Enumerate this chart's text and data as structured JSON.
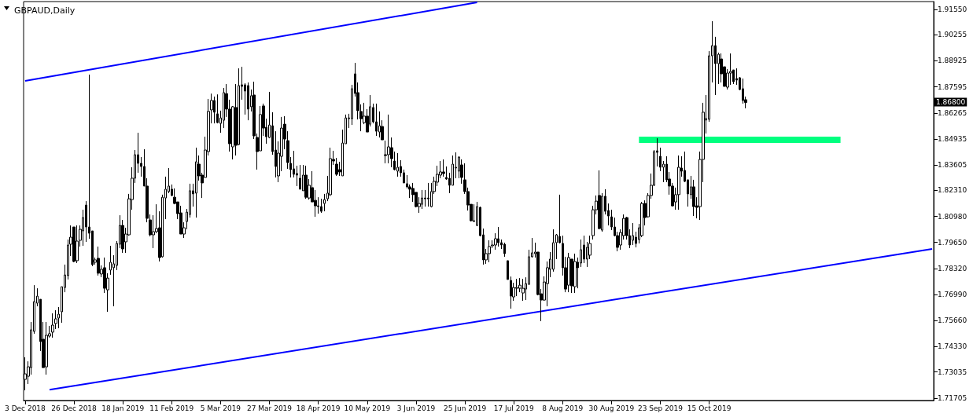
{
  "chart_data": {
    "type": "candlestick",
    "title": "GBPAUD,Daily",
    "color": "#000000",
    "categories": [
      "3 Dec 2018",
      null,
      null,
      null,
      null,
      null,
      null,
      null,
      null,
      null,
      null,
      null,
      null,
      null,
      null,
      null,
      "26 Dec 2018",
      null,
      null,
      null,
      null,
      null,
      null,
      null,
      null,
      null,
      null,
      null,
      null,
      null,
      null,
      null,
      "18 Jan 2019",
      null,
      null,
      null,
      null,
      null,
      null,
      null,
      null,
      null,
      null,
      null,
      null,
      null,
      null,
      null,
      "11 Feb 2019",
      null,
      null,
      null,
      null,
      null,
      null,
      null,
      null,
      null,
      null,
      null,
      null,
      null,
      null,
      null,
      "5 Mar 2019",
      null,
      null,
      null,
      null,
      null,
      null,
      null,
      null,
      null,
      null,
      null,
      null,
      null,
      null,
      null,
      "27 Mar 2019",
      null,
      null,
      null,
      null,
      null,
      null,
      null,
      null,
      null,
      null,
      null,
      null,
      null,
      null,
      null,
      "18 Apr 2019",
      null,
      null,
      null,
      null,
      null,
      null,
      null,
      null,
      null,
      null,
      null,
      null,
      null,
      null,
      null,
      "10 May 2019",
      null,
      null,
      null,
      null,
      null,
      null,
      null,
      null,
      null,
      null,
      null,
      null,
      null,
      null,
      null,
      "3 Jun 2019",
      null,
      null,
      null,
      null,
      null,
      null,
      null,
      null,
      null,
      null,
      null,
      null,
      null,
      null,
      null,
      "25 Jun 2019",
      null,
      null,
      null,
      null,
      null,
      null,
      null,
      null,
      null,
      null,
      null,
      null,
      null,
      null,
      null,
      "17 Jul 2019",
      null,
      null,
      null,
      null,
      null,
      null,
      null,
      null,
      null,
      null,
      null,
      null,
      null,
      null,
      null,
      "8 Aug 2019",
      null,
      null,
      null,
      null,
      null,
      null,
      null,
      null,
      null,
      null,
      null,
      null,
      null,
      null,
      null,
      "30 Aug 2019",
      null,
      null,
      null,
      null,
      null,
      null,
      null,
      null,
      null,
      null,
      null,
      null,
      null,
      null,
      null,
      "23 Sep 2019",
      null,
      null,
      null,
      null,
      null,
      null,
      null,
      null,
      null,
      null,
      null,
      null,
      null,
      null,
      null,
      "15 Oct 2019",
      null,
      null,
      null,
      null,
      null,
      null,
      null,
      null,
      null,
      null,
      null,
      null,
      null,
      null,
      null,
      null,
      null,
      null,
      null,
      null,
      null,
      null,
      null,
      null,
      null,
      null,
      null,
      null,
      null,
      null,
      null,
      null,
      null,
      null,
      null,
      null,
      null,
      null,
      null,
      null,
      null,
      null,
      null,
      null,
      null,
      null,
      null,
      null,
      null,
      null,
      null,
      null,
      null,
      null,
      null,
      null,
      null,
      null,
      null,
      null,
      null,
      null,
      null,
      null,
      null,
      null,
      null,
      null,
      null,
      null,
      null,
      null,
      null
    ],
    "ohlc": [
      [
        1.7266,
        1.7379,
        1.721,
        1.7294
      ],
      [
        1.7282,
        1.7358,
        1.7242,
        1.733
      ],
      [
        1.7326,
        1.7559,
        1.729,
        1.7519
      ],
      [
        1.7511,
        1.7747,
        1.7499,
        1.7663
      ],
      [
        1.7655,
        1.7731,
        1.7639,
        1.7691
      ],
      [
        1.7675,
        1.7675,
        1.7411,
        1.7459
      ],
      [
        1.7471,
        1.7559,
        1.7326,
        1.7326
      ],
      [
        1.733,
        1.7559,
        1.729,
        1.7491
      ],
      [
        1.7487,
        1.7539,
        1.7479,
        1.7499
      ],
      [
        1.7507,
        1.7603,
        1.7479,
        1.7543
      ],
      [
        1.7551,
        1.7619,
        1.7523,
        1.7575
      ],
      [
        1.7579,
        1.7635,
        1.7527,
        1.7599
      ],
      [
        1.7611,
        1.7739,
        1.7555,
        1.7739
      ],
      [
        1.7735,
        1.7852,
        1.7711,
        1.7799
      ],
      [
        1.7796,
        1.798,
        1.7776,
        1.7952
      ],
      [
        1.7956,
        1.8052,
        1.7896,
        1.7992
      ],
      [
        1.8044,
        1.8044,
        1.7864,
        1.7868
      ],
      [
        1.7872,
        1.8052,
        1.786,
        1.7972
      ],
      [
        1.7976,
        1.8052,
        1.7944,
        1.8032
      ],
      [
        1.8024,
        1.8132,
        1.7948,
        1.8092
      ],
      [
        1.8156,
        1.8176,
        1.7968,
        1.8044
      ],
      [
        1.8044,
        1.8822,
        1.7984,
        1.8012
      ],
      [
        1.8024,
        1.8024,
        1.7844,
        1.7852
      ],
      [
        1.7864,
        1.7888,
        1.7852,
        1.7876
      ],
      [
        1.7884,
        1.7944,
        1.7796,
        1.7808
      ],
      [
        1.7804,
        1.7848,
        1.7788,
        1.7828
      ],
      [
        1.7836,
        1.7888,
        1.7707,
        1.7731
      ],
      [
        1.7723,
        1.7808,
        1.7611,
        1.7783
      ],
      [
        1.7824,
        1.7948,
        1.78,
        1.7864
      ],
      [
        1.7836,
        1.79,
        1.7639,
        1.7856
      ],
      [
        1.7848,
        1.7972,
        1.7824,
        1.796
      ],
      [
        1.7956,
        1.8104,
        1.7936,
        1.8052
      ],
      [
        1.8052,
        1.808,
        1.7912,
        1.7932
      ],
      [
        1.7968,
        1.804,
        1.7912,
        1.8008
      ],
      [
        1.8004,
        1.8213,
        1.8,
        1.8188
      ],
      [
        1.8184,
        1.8349,
        1.8132,
        1.8293
      ],
      [
        1.8293,
        1.8437,
        1.8269,
        1.8413
      ],
      [
        1.8413,
        1.8525,
        1.8321,
        1.8369
      ],
      [
        1.8369,
        1.8401,
        1.8301,
        1.8353
      ],
      [
        1.8353,
        1.8441,
        1.8253,
        1.8253
      ],
      [
        1.8253,
        1.8293,
        1.8068,
        1.8088
      ],
      [
        1.808,
        1.8108,
        1.7996,
        1.8004
      ],
      [
        1.8004,
        1.8104,
        1.7936,
        1.802
      ],
      [
        1.802,
        1.816,
        1.8012,
        1.8036
      ],
      [
        1.804,
        1.8124,
        1.7868,
        1.7888
      ],
      [
        1.7892,
        1.8209,
        1.7888,
        1.8196
      ],
      [
        1.8192,
        1.8301,
        1.8084,
        1.8237
      ],
      [
        1.8225,
        1.8345,
        1.8217,
        1.8253
      ],
      [
        1.8237,
        1.8261,
        1.8201,
        1.8205
      ],
      [
        1.8196,
        1.8241,
        1.816,
        1.8164
      ],
      [
        1.8172,
        1.8172,
        1.8084,
        1.8112
      ],
      [
        1.8116,
        1.8152,
        1.8008,
        1.8008
      ],
      [
        1.8008,
        1.8068,
        1.7988,
        1.804
      ],
      [
        1.8072,
        1.8136,
        1.8032,
        1.812
      ],
      [
        1.8108,
        1.8265,
        1.8092,
        1.8229
      ],
      [
        1.8229,
        1.8265,
        1.8148,
        1.8213
      ],
      [
        1.8217,
        1.8449,
        1.8092,
        1.8377
      ],
      [
        1.8365,
        1.8409,
        1.8281,
        1.8305
      ],
      [
        1.8309,
        1.8321,
        1.8192,
        1.8269
      ],
      [
        1.8297,
        1.8505,
        1.8297,
        1.8437
      ],
      [
        1.8429,
        1.8698,
        1.8409,
        1.8634
      ],
      [
        1.8642,
        1.8725,
        1.8573,
        1.869
      ],
      [
        1.869,
        1.871,
        1.8573,
        1.863
      ],
      [
        1.8622,
        1.8721,
        1.8573,
        1.8577
      ],
      [
        1.8573,
        1.8638,
        1.8525,
        1.8601
      ],
      [
        1.8589,
        1.8754,
        1.8549,
        1.873
      ],
      [
        1.8725,
        1.8774,
        1.8606,
        1.8646
      ],
      [
        1.8646,
        1.8694,
        1.8429,
        1.8469
      ],
      [
        1.8453,
        1.8662,
        1.8389,
        1.8658
      ],
      [
        1.8654,
        1.8774,
        1.8409,
        1.8461
      ],
      [
        1.8465,
        1.8854,
        1.8461,
        1.8766
      ],
      [
        1.877,
        1.8862,
        1.8694,
        1.8762
      ],
      [
        1.877,
        1.8778,
        1.8618,
        1.8738
      ],
      [
        1.8766,
        1.8782,
        1.8589,
        1.8646
      ],
      [
        1.8658,
        1.8746,
        1.8634,
        1.8714
      ],
      [
        1.8718,
        1.8786,
        1.8493,
        1.8509
      ],
      [
        1.8501,
        1.8521,
        1.8337,
        1.8429
      ],
      [
        1.8433,
        1.8662,
        1.8433,
        1.8618
      ],
      [
        1.8662,
        1.8674,
        1.8509,
        1.8549
      ],
      [
        1.8553,
        1.8597,
        1.8469,
        1.8505
      ],
      [
        1.8501,
        1.8734,
        1.8497,
        1.8565
      ],
      [
        1.8561,
        1.863,
        1.8413,
        1.8429
      ],
      [
        1.8437,
        1.8533,
        1.8297,
        1.8353
      ],
      [
        1.8305,
        1.8481,
        1.8273,
        1.8421
      ],
      [
        1.8405,
        1.8606,
        1.8329,
        1.8549
      ],
      [
        1.8569,
        1.861,
        1.8441,
        1.8493
      ],
      [
        1.8485,
        1.8533,
        1.8341,
        1.8373
      ],
      [
        1.8369,
        1.8401,
        1.8297,
        1.8337
      ],
      [
        1.8341,
        1.8433,
        1.8297,
        1.8313
      ],
      [
        1.8317,
        1.8357,
        1.8253,
        1.8309
      ],
      [
        1.8293,
        1.8361,
        1.8237,
        1.8237
      ],
      [
        1.8229,
        1.8361,
        1.8229,
        1.8309
      ],
      [
        1.8309,
        1.8357,
        1.8188,
        1.8196
      ],
      [
        1.8192,
        1.8289,
        1.8184,
        1.8257
      ],
      [
        1.8245,
        1.8329,
        1.8172,
        1.8172
      ],
      [
        1.818,
        1.8233,
        1.8096,
        1.8152
      ],
      [
        1.8152,
        1.8196,
        1.8112,
        1.8148
      ],
      [
        1.8148,
        1.8188,
        1.8116,
        1.8124
      ],
      [
        1.8164,
        1.8213,
        1.8124,
        1.8184
      ],
      [
        1.8188,
        1.8305,
        1.8176,
        1.8217
      ],
      [
        1.8209,
        1.8449,
        1.8201,
        1.8393
      ],
      [
        1.8389,
        1.8433,
        1.8361,
        1.8381
      ],
      [
        1.8365,
        1.8397,
        1.8305,
        1.8313
      ],
      [
        1.8337,
        1.8377,
        1.8305,
        1.8325
      ],
      [
        1.8305,
        1.8541,
        1.8305,
        1.8473
      ],
      [
        1.8469,
        1.8618,
        1.8469,
        1.8601
      ],
      [
        1.8597,
        1.8622,
        1.8549,
        1.8601
      ],
      [
        1.8597,
        1.877,
        1.8565,
        1.875
      ],
      [
        1.8826,
        1.8882,
        1.871,
        1.8726
      ],
      [
        1.873,
        1.8782,
        1.8593,
        1.8638
      ],
      [
        1.8634,
        1.867,
        1.8533,
        1.8597
      ],
      [
        1.8577,
        1.8678,
        1.8569,
        1.861
      ],
      [
        1.861,
        1.8646,
        1.8529,
        1.8529
      ],
      [
        1.8569,
        1.8718,
        1.8557,
        1.8658
      ],
      [
        1.8654,
        1.8674,
        1.8573,
        1.8581
      ],
      [
        1.8581,
        1.8674,
        1.8509,
        1.8533
      ],
      [
        1.8529,
        1.8634,
        1.8501,
        1.8561
      ],
      [
        1.8557,
        1.8589,
        1.8489,
        1.8489
      ],
      [
        1.8413,
        1.8485,
        1.8369,
        1.8409
      ],
      [
        1.8413,
        1.8618,
        1.8369,
        1.8453
      ],
      [
        1.8449,
        1.8501,
        1.8349,
        1.8393
      ],
      [
        1.8381,
        1.8429,
        1.8333,
        1.8337
      ],
      [
        1.8329,
        1.8421,
        1.8301,
        1.8349
      ],
      [
        1.8353,
        1.8385,
        1.8301,
        1.8321
      ],
      [
        1.8321,
        1.8337,
        1.8269,
        1.8269
      ],
      [
        1.8265,
        1.8309,
        1.8241,
        1.8249
      ],
      [
        1.8249,
        1.8261,
        1.8192,
        1.8237
      ],
      [
        1.8241,
        1.8269,
        1.8172,
        1.8209
      ],
      [
        1.8221,
        1.8221,
        1.8144,
        1.8148
      ],
      [
        1.8148,
        1.8196,
        1.8116,
        1.8164
      ],
      [
        1.816,
        1.8233,
        1.8136,
        1.8192
      ],
      [
        1.8192,
        1.8233,
        1.8148,
        1.8188
      ],
      [
        1.8192,
        1.8269,
        1.8148,
        1.8188
      ],
      [
        1.8148,
        1.8269,
        1.8144,
        1.8225
      ],
      [
        1.8225,
        1.8301,
        1.8213,
        1.8277
      ],
      [
        1.8273,
        1.8357,
        1.8253,
        1.8313
      ],
      [
        1.8309,
        1.8381,
        1.8293,
        1.8325
      ],
      [
        1.8325,
        1.8389,
        1.8301,
        1.8317
      ],
      [
        1.8297,
        1.8353,
        1.8285,
        1.8289
      ],
      [
        1.8293,
        1.8321,
        1.8217,
        1.8257
      ],
      [
        1.8257,
        1.8409,
        1.8257,
        1.8365
      ],
      [
        1.8345,
        1.8425,
        1.8293,
        1.8349
      ],
      [
        1.8329,
        1.8405,
        1.8293,
        1.8401
      ],
      [
        1.8361,
        1.8389,
        1.8265,
        1.8297
      ],
      [
        1.8285,
        1.8369,
        1.8213,
        1.8225
      ],
      [
        1.8225,
        1.8245,
        1.8128,
        1.8156
      ],
      [
        1.816,
        1.816,
        1.8072,
        1.8076
      ],
      [
        1.8076,
        1.816,
        1.8072,
        1.8072
      ],
      [
        1.8052,
        1.8172,
        1.8048,
        1.8148
      ],
      [
        1.8144,
        1.8148,
        1.7996,
        1.8
      ],
      [
        1.8004,
        1.8036,
        1.7852,
        1.7876
      ],
      [
        1.7876,
        1.7932,
        1.7856,
        1.7908
      ],
      [
        1.7908,
        1.7976,
        1.7864,
        1.7944
      ],
      [
        1.7948,
        1.7976,
        1.7936,
        1.7952
      ],
      [
        1.7952,
        1.8012,
        1.7928,
        1.7984
      ],
      [
        1.7984,
        1.8044,
        1.7944,
        1.7964
      ],
      [
        1.7964,
        1.798,
        1.7932,
        1.7952
      ],
      [
        1.7956,
        1.7964,
        1.7892,
        1.7908
      ],
      [
        1.7872,
        1.7872,
        1.7776,
        1.7776
      ],
      [
        1.7771,
        1.7791,
        1.7627,
        1.7691
      ],
      [
        1.7687,
        1.7759,
        1.7667,
        1.7735
      ],
      [
        1.7731,
        1.7779,
        1.7691,
        1.7735
      ],
      [
        1.7731,
        1.7783,
        1.7711,
        1.7747
      ],
      [
        1.7707,
        1.7779,
        1.7667,
        1.7731
      ],
      [
        1.7727,
        1.7787,
        1.7671,
        1.7755
      ],
      [
        1.7751,
        1.7928,
        1.7751,
        1.7892
      ],
      [
        1.7892,
        1.7988,
        1.7888,
        1.7912
      ],
      [
        1.7908,
        1.7964,
        1.7888,
        1.7916
      ],
      [
        1.7916,
        1.7916,
        1.7695,
        1.7699
      ],
      [
        1.7703,
        1.7727,
        1.7563,
        1.7671
      ],
      [
        1.7671,
        1.7792,
        1.7667,
        1.7763
      ],
      [
        1.7755,
        1.7868,
        1.7639,
        1.7836
      ],
      [
        1.7828,
        1.7916,
        1.7788,
        1.788
      ],
      [
        1.7828,
        1.8032,
        1.7816,
        1.7964
      ],
      [
        1.7964,
        1.8008,
        1.788,
        1.8004
      ],
      [
        1.7996,
        1.8209,
        1.796,
        1.7964
      ],
      [
        1.796,
        1.8,
        1.7796,
        1.7836
      ],
      [
        1.7836,
        1.7892,
        1.7711,
        1.7727
      ],
      [
        1.7747,
        1.7912,
        1.7711,
        1.7888
      ],
      [
        1.788,
        1.788,
        1.7707,
        1.7743
      ],
      [
        1.7739,
        1.7908,
        1.7707,
        1.7868
      ],
      [
        1.7864,
        1.7888,
        1.7731,
        1.7836
      ],
      [
        1.786,
        1.798,
        1.784,
        1.7928
      ],
      [
        1.7952,
        1.8,
        1.786,
        1.788
      ],
      [
        1.788,
        1.7968,
        1.784,
        1.794
      ],
      [
        1.79,
        1.8,
        1.788,
        1.796
      ],
      [
        1.8,
        1.8152,
        1.798,
        1.8132
      ],
      [
        1.8132,
        1.8205,
        1.8108,
        1.8176
      ],
      [
        1.8205,
        1.8333,
        1.8032,
        1.8036
      ],
      [
        1.8028,
        1.8217,
        1.802,
        1.8201
      ],
      [
        1.8201,
        1.8237,
        1.8108,
        1.8124
      ],
      [
        1.8128,
        1.8164,
        1.8052,
        1.81
      ],
      [
        1.8096,
        1.8132,
        1.8028,
        1.8044
      ],
      [
        1.8044,
        1.8092,
        1.7996,
        1.8
      ],
      [
        1.8,
        1.802,
        1.792,
        1.794
      ],
      [
        1.7952,
        1.8032,
        1.7928,
        1.8016
      ],
      [
        1.8,
        1.8108,
        1.798,
        1.8088
      ],
      [
        1.8092,
        1.8096,
        1.798,
        1.8
      ],
      [
        1.8,
        1.8032,
        1.7936,
        1.7952
      ],
      [
        1.7976,
        1.8064,
        1.7952,
        1.8
      ],
      [
        1.7992,
        1.802,
        1.794,
        1.796
      ],
      [
        1.798,
        1.806,
        1.796,
        1.804
      ],
      [
        1.8,
        1.8172,
        1.7992,
        1.8164
      ],
      [
        1.8164,
        1.818,
        1.8052,
        1.8092
      ],
      [
        1.8096,
        1.8217,
        1.8092,
        1.8205
      ],
      [
        1.8205,
        1.8317,
        1.8188,
        1.8257
      ],
      [
        1.8257,
        1.8437,
        1.8253,
        1.8429
      ],
      [
        1.8433,
        1.8497,
        1.8353,
        1.8425
      ],
      [
        1.8405,
        1.8449,
        1.8329,
        1.8349
      ],
      [
        1.8349,
        1.8381,
        1.8273,
        1.8365
      ],
      [
        1.8365,
        1.8405,
        1.8273,
        1.8285
      ],
      [
        1.8289,
        1.8325,
        1.8209,
        1.8253
      ],
      [
        1.8253,
        1.8269,
        1.8148,
        1.8152
      ],
      [
        1.8172,
        1.8245,
        1.8132,
        1.8209
      ],
      [
        1.8209,
        1.8409,
        1.8132,
        1.8349
      ],
      [
        1.8345,
        1.8405,
        1.8301,
        1.8329
      ],
      [
        1.8333,
        1.8429,
        1.8273,
        1.8277
      ],
      [
        1.8285,
        1.8285,
        1.8148,
        1.8213
      ],
      [
        1.8209,
        1.8305,
        1.8188,
        1.8249
      ],
      [
        1.8249,
        1.8285,
        1.81,
        1.8148
      ],
      [
        1.8152,
        1.8196,
        1.8088,
        1.8144
      ],
      [
        1.8148,
        1.8429,
        1.808,
        1.8389
      ],
      [
        1.8389,
        1.8678,
        1.8273,
        1.863
      ],
      [
        1.859,
        1.8718,
        1.8521,
        1.8598
      ],
      [
        1.8594,
        1.8942,
        1.8581,
        1.8918
      ],
      [
        1.8918,
        1.9095,
        1.8782,
        1.897
      ],
      [
        1.897,
        1.9015,
        1.8718,
        1.8878
      ],
      [
        1.8878,
        1.8934,
        1.8774,
        1.8926
      ],
      [
        1.8902,
        1.893,
        1.8782,
        1.8826
      ],
      [
        1.8862,
        1.8862,
        1.8762,
        1.8762
      ],
      [
        1.8758,
        1.885,
        1.8746,
        1.883
      ],
      [
        1.883,
        1.893,
        1.877,
        1.8838
      ],
      [
        1.8846,
        1.8846,
        1.8774,
        1.8786
      ],
      [
        1.8802,
        1.8854,
        1.877,
        1.8794
      ],
      [
        1.8806,
        1.881,
        1.8742,
        1.8746
      ],
      [
        1.875,
        1.8802,
        1.8674,
        1.869
      ],
      [
        1.8694,
        1.871,
        1.865,
        1.868
      ],
      null,
      null,
      null,
      null,
      null,
      null,
      null,
      null,
      null,
      null,
      null,
      null,
      null,
      null,
      null,
      null,
      null,
      null,
      null,
      null,
      null,
      null,
      null,
      null,
      null,
      null,
      null,
      null,
      null,
      null,
      null,
      null,
      null,
      null,
      null,
      null,
      null,
      null,
      null,
      null,
      null,
      null,
      null,
      null,
      null,
      null,
      null,
      null,
      null,
      null,
      null,
      null,
      null,
      null,
      null,
      null,
      null,
      null,
      null,
      null,
      null
    ],
    "series": [
      {
        "type": "line",
        "color": "#0000ff",
        "values": [
          1.879,
          null,
          null,
          null,
          null,
          null,
          null,
          null,
          null,
          null,
          null,
          null,
          null,
          null,
          null,
          null,
          null,
          null,
          null,
          null,
          null,
          null,
          null,
          null,
          null,
          null,
          null,
          null,
          null,
          null,
          null,
          null,
          null,
          null,
          null,
          null,
          null,
          null,
          null,
          null,
          null,
          null,
          null,
          null,
          null,
          null,
          null,
          null,
          null,
          null,
          null,
          null,
          null,
          null,
          null,
          null,
          null,
          null,
          null,
          null,
          null,
          null,
          null,
          null,
          null,
          null,
          null,
          null,
          null,
          null,
          null,
          null,
          null,
          null,
          null,
          null,
          null,
          null,
          null,
          null,
          null,
          null,
          null,
          null,
          null,
          null,
          null,
          null,
          null,
          null,
          null,
          null,
          null,
          null,
          null,
          null,
          null,
          null,
          null,
          null,
          null,
          null,
          null,
          null,
          null,
          null,
          null,
          null,
          null,
          null,
          null,
          null,
          null,
          null,
          null,
          null,
          null,
          null,
          null,
          null,
          null,
          null,
          null,
          null,
          null,
          null,
          null,
          null,
          null,
          null,
          null,
          null,
          null,
          null,
          null,
          null,
          null,
          null,
          null,
          null,
          null,
          null,
          null,
          null,
          null,
          null,
          null,
          null,
          1.9191,
          null,
          null,
          null,
          null,
          null,
          null,
          null,
          null,
          null,
          null,
          null,
          null,
          null,
          null,
          null,
          null,
          null,
          null,
          null,
          null,
          null,
          null,
          null,
          null,
          null,
          null,
          null,
          null,
          null,
          null,
          null,
          null,
          null,
          null,
          null,
          null,
          null,
          null,
          null,
          null,
          null,
          null,
          null,
          null,
          null,
          null,
          null,
          null,
          null,
          null,
          null,
          null,
          null,
          null,
          null,
          null,
          null,
          null,
          null,
          null,
          null,
          null,
          null,
          null,
          null,
          null,
          null,
          null,
          null,
          null,
          null,
          null,
          null,
          null,
          null,
          null,
          null,
          null,
          null,
          null,
          null,
          null,
          null,
          null,
          null,
          null,
          null,
          null,
          null,
          null,
          null,
          null,
          null,
          null,
          null,
          null,
          null,
          null,
          null,
          null,
          null,
          null,
          null,
          null,
          null,
          null,
          null,
          null,
          null,
          null,
          null,
          null,
          null,
          null,
          null,
          null,
          null,
          null,
          null,
          null,
          null,
          null,
          null,
          null,
          null,
          null,
          null,
          null,
          null,
          null,
          null,
          null,
          null,
          null,
          null,
          null,
          null,
          null,
          null,
          null,
          null,
          null,
          null,
          null,
          null,
          null,
          null,
          null,
          null
        ]
      },
      {
        "type": "line",
        "color": "#0000ff",
        "values": [
          null,
          null,
          null,
          null,
          null,
          null,
          null,
          null,
          1.7213,
          null,
          null,
          null,
          null,
          null,
          null,
          null,
          null,
          null,
          null,
          null,
          null,
          null,
          null,
          null,
          null,
          null,
          null,
          null,
          null,
          null,
          null,
          null,
          null,
          null,
          null,
          null,
          null,
          null,
          null,
          null,
          null,
          null,
          null,
          null,
          null,
          null,
          null,
          null,
          null,
          null,
          null,
          null,
          null,
          null,
          null,
          null,
          null,
          null,
          null,
          null,
          null,
          null,
          null,
          null,
          null,
          null,
          null,
          null,
          null,
          null,
          null,
          null,
          null,
          null,
          null,
          null,
          null,
          null,
          null,
          null,
          null,
          null,
          null,
          null,
          null,
          null,
          null,
          null,
          null,
          null,
          null,
          null,
          null,
          null,
          null,
          null,
          null,
          null,
          null,
          null,
          null,
          null,
          null,
          null,
          null,
          null,
          null,
          null,
          null,
          null,
          null,
          null,
          null,
          null,
          null,
          null,
          null,
          null,
          null,
          null,
          null,
          null,
          null,
          null,
          null,
          null,
          null,
          null,
          null,
          null,
          null,
          null,
          null,
          null,
          null,
          null,
          null,
          null,
          null,
          null,
          null,
          null,
          null,
          null,
          null,
          null,
          null,
          null,
          null,
          null,
          null,
          null,
          null,
          null,
          null,
          null,
          null,
          null,
          null,
          null,
          null,
          null,
          null,
          null,
          null,
          null,
          null,
          null,
          null,
          null,
          null,
          null,
          null,
          null,
          null,
          null,
          null,
          null,
          null,
          null,
          null,
          null,
          null,
          null,
          null,
          null,
          null,
          null,
          null,
          null,
          null,
          null,
          null,
          null,
          null,
          null,
          null,
          null,
          null,
          null,
          null,
          null,
          null,
          null,
          null,
          null,
          null,
          null,
          null,
          null,
          null,
          null,
          null,
          null,
          null,
          null,
          null,
          null,
          null,
          null,
          null,
          null,
          null,
          null,
          null,
          null,
          null,
          null,
          null,
          null,
          null,
          null,
          null,
          null,
          null,
          null,
          null,
          null,
          null,
          null,
          null,
          null,
          null,
          null,
          null,
          null,
          null,
          null,
          null,
          null,
          null,
          null,
          null,
          null,
          null,
          null,
          null,
          null,
          null,
          null,
          null,
          null,
          null,
          null,
          null,
          null,
          null,
          null,
          null,
          null,
          null,
          null,
          null,
          null,
          null,
          null,
          null,
          null,
          null,
          null,
          null,
          null,
          null,
          null,
          null,
          null,
          null,
          null,
          null,
          null,
          null,
          null,
          null,
          null,
          null,
          null,
          null,
          1.7932
        ]
      },
      {
        "type": "line",
        "color": "#00ff7f",
        "values": [
          null,
          null,
          null,
          null,
          null,
          null,
          null,
          null,
          null,
          null,
          null,
          null,
          null,
          null,
          null,
          null,
          null,
          null,
          null,
          null,
          null,
          null,
          null,
          null,
          null,
          null,
          null,
          null,
          null,
          null,
          null,
          null,
          null,
          null,
          null,
          null,
          null,
          null,
          null,
          null,
          null,
          null,
          null,
          null,
          null,
          null,
          null,
          null,
          null,
          null,
          null,
          null,
          null,
          null,
          null,
          null,
          null,
          null,
          null,
          null,
          null,
          null,
          null,
          null,
          null,
          null,
          null,
          null,
          null,
          null,
          null,
          null,
          null,
          null,
          null,
          null,
          null,
          null,
          null,
          null,
          null,
          null,
          null,
          null,
          null,
          null,
          null,
          null,
          null,
          null,
          null,
          null,
          null,
          null,
          null,
          null,
          null,
          null,
          null,
          null,
          null,
          null,
          null,
          null,
          null,
          null,
          null,
          null,
          null,
          null,
          null,
          null,
          null,
          null,
          null,
          null,
          null,
          null,
          null,
          null,
          null,
          null,
          null,
          null,
          null,
          null,
          null,
          null,
          null,
          null,
          null,
          null,
          null,
          null,
          null,
          null,
          null,
          null,
          null,
          null,
          null,
          null,
          null,
          null,
          null,
          null,
          null,
          null,
          null,
          null,
          null,
          null,
          null,
          null,
          null,
          null,
          null,
          null,
          null,
          null,
          null,
          null,
          null,
          null,
          null,
          null,
          null,
          null,
          null,
          null,
          null,
          null,
          null,
          null,
          null,
          null,
          null,
          null,
          null,
          null,
          null,
          null,
          null,
          null,
          null,
          null,
          null,
          null,
          null,
          null,
          null,
          null,
          null,
          null,
          null,
          null,
          null,
          null,
          null,
          null,
          null,
          1.8489,
          null,
          null,
          null,
          null,
          null,
          null,
          null,
          null,
          null,
          null,
          null,
          null,
          null,
          null,
          null,
          null,
          null,
          null,
          null,
          null,
          null,
          null,
          null,
          null,
          null,
          null,
          null,
          null,
          null,
          null,
          null,
          null,
          null,
          null,
          null,
          null,
          null,
          null,
          null,
          null,
          null,
          null,
          null,
          null,
          null,
          null,
          null,
          null,
          null,
          null,
          null,
          null,
          null,
          null,
          null,
          null,
          null,
          null,
          null,
          null,
          null,
          null,
          null,
          null,
          null,
          1.8489,
          null,
          null,
          null,
          null,
          null,
          null,
          null,
          null,
          null,
          null,
          null,
          null,
          null,
          null,
          null,
          null,
          null,
          null,
          null,
          null,
          null,
          null,
          null,
          null,
          null,
          null,
          null,
          null,
          null,
          null
        ]
      }
    ],
    "ylim": [
      1.7158,
      1.9195
    ],
    "yticks": [
      {
        "value": 1.9155,
        "label": "1.91550"
      },
      1.90255,
      1.88925,
      1.87595,
      1.86265,
      1.84935,
      1.83605,
      {
        "value": 1.8231,
        "label": "1.82310"
      },
      {
        "value": 1.8098,
        "label": "1.80980"
      },
      {
        "value": 1.7965,
        "label": "1.79650"
      },
      {
        "value": 1.7832,
        "label": "1.78320"
      },
      {
        "value": 1.7699,
        "label": "1.76990"
      },
      {
        "value": 1.7566,
        "label": "1.75660"
      },
      {
        "value": 1.7433,
        "label": "1.74330"
      },
      1.73035,
      1.71705
    ],
    "annotations": [
      "1.86800"
    ]
  }
}
